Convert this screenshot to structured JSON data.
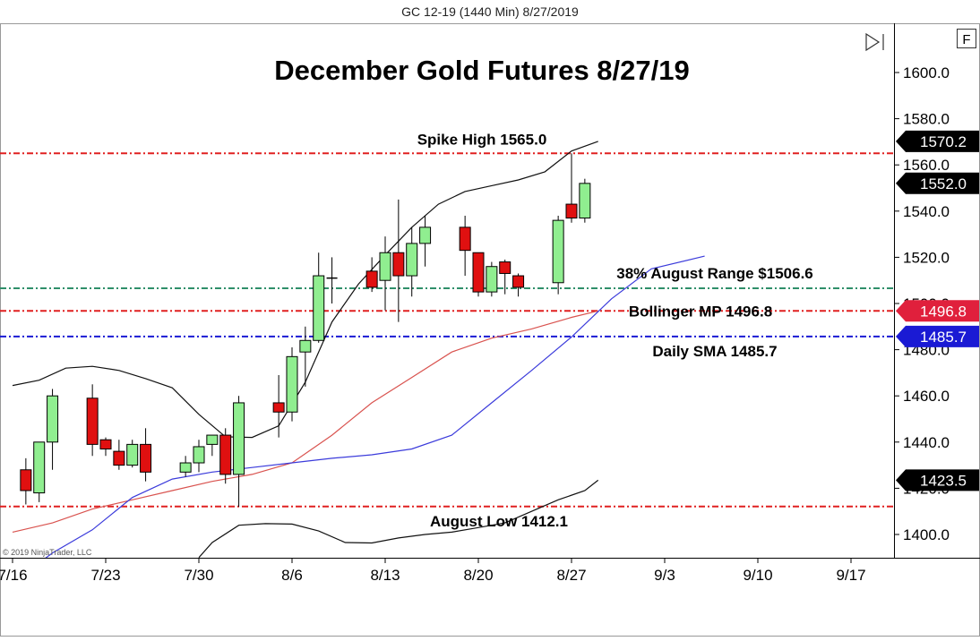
{
  "header": {
    "caption": "GC 12-19 (1440 Min)  8/27/2019"
  },
  "chart_data": {
    "type": "candlestick",
    "title": "December Gold Futures 8/27/19",
    "copyright": "© 2019 NinjaTrader, LLC",
    "panel_button": "F",
    "ylim": [
      1390,
      1620
    ],
    "y_ticks": [
      {
        "value": 1400,
        "label": "1400.0"
      },
      {
        "value": 1420,
        "label": "1420.0"
      },
      {
        "value": 1440,
        "label": "1440.0"
      },
      {
        "value": 1460,
        "label": "1460.0"
      },
      {
        "value": 1480,
        "label": "1480.0"
      },
      {
        "value": 1500,
        "label": "1500.0"
      },
      {
        "value": 1520,
        "label": "1520.0"
      },
      {
        "value": 1540,
        "label": "1540.0"
      },
      {
        "value": 1560,
        "label": "1560.0"
      },
      {
        "value": 1580,
        "label": "1580.0"
      },
      {
        "value": 1600,
        "label": "1600.0"
      }
    ],
    "x_ticks": [
      {
        "date": "2019-07-16",
        "label": "7/16"
      },
      {
        "date": "2019-07-23",
        "label": "7/23"
      },
      {
        "date": "2019-07-30",
        "label": "7/30"
      },
      {
        "date": "2019-08-06",
        "label": "8/6"
      },
      {
        "date": "2019-08-13",
        "label": "8/13"
      },
      {
        "date": "2019-08-20",
        "label": "8/20"
      },
      {
        "date": "2019-08-27",
        "label": "8/27"
      },
      {
        "date": "2019-09-03",
        "label": "9/3"
      },
      {
        "date": "2019-09-10",
        "label": "9/10"
      },
      {
        "date": "2019-09-17",
        "label": "9/17"
      }
    ],
    "candles": [
      {
        "date": "2019-07-17",
        "open": 1428.0,
        "high": 1433.0,
        "low": 1413.0,
        "close": 1419.0
      },
      {
        "date": "2019-07-18",
        "open": 1418.0,
        "high": 1440.0,
        "low": 1414.0,
        "close": 1440.0
      },
      {
        "date": "2019-07-19",
        "open": 1440.0,
        "high": 1463.0,
        "low": 1428.0,
        "close": 1460.0
      },
      {
        "date": "2019-07-22",
        "open": 1459.0,
        "high": 1465.0,
        "low": 1434.0,
        "close": 1439.0
      },
      {
        "date": "2019-07-23",
        "open": 1441.0,
        "high": 1442.0,
        "low": 1434.0,
        "close": 1437.0
      },
      {
        "date": "2019-07-24",
        "open": 1436.0,
        "high": 1441.0,
        "low": 1428.0,
        "close": 1430.0
      },
      {
        "date": "2019-07-25",
        "open": 1430.0,
        "high": 1441.0,
        "low": 1429.0,
        "close": 1439.0
      },
      {
        "date": "2019-07-26",
        "open": 1439.0,
        "high": 1446.0,
        "low": 1423.0,
        "close": 1427.0
      },
      {
        "date": "2019-07-29",
        "open": 1427.0,
        "high": 1434.0,
        "low": 1425.0,
        "close": 1431.0
      },
      {
        "date": "2019-07-30",
        "open": 1431.0,
        "high": 1441.0,
        "low": 1427.0,
        "close": 1438.0
      },
      {
        "date": "2019-07-31",
        "open": 1439.0,
        "high": 1443.0,
        "low": 1434.0,
        "close": 1443.0
      },
      {
        "date": "2019-08-01",
        "open": 1443.0,
        "high": 1446.0,
        "low": 1422.0,
        "close": 1426.0
      },
      {
        "date": "2019-08-02",
        "open": 1426.0,
        "high": 1460.0,
        "low": 1412.0,
        "close": 1457.0
      },
      {
        "date": "2019-08-05",
        "open": 1457.0,
        "high": 1469.0,
        "low": 1442.0,
        "close": 1453.0
      },
      {
        "date": "2019-08-06",
        "open": 1453.0,
        "high": 1481.0,
        "low": 1449.0,
        "close": 1477.0
      },
      {
        "date": "2019-08-07",
        "open": 1479.0,
        "high": 1490.0,
        "low": 1464.0,
        "close": 1484.0
      },
      {
        "date": "2019-08-08",
        "open": 1484.0,
        "high": 1522.0,
        "low": 1483.0,
        "close": 1512.0
      },
      {
        "date": "2019-08-09",
        "open": 1511.0,
        "high": 1520.0,
        "low": 1500.0,
        "close": 1511.0
      },
      {
        "date": "2019-08-12",
        "open": 1514.0,
        "high": 1520.0,
        "low": 1505.0,
        "close": 1507.0
      },
      {
        "date": "2019-08-13",
        "open": 1510.0,
        "high": 1529.0,
        "low": 1497.0,
        "close": 1522.0
      },
      {
        "date": "2019-08-14",
        "open": 1522.0,
        "high": 1545.0,
        "low": 1492.0,
        "close": 1512.0
      },
      {
        "date": "2019-08-15",
        "open": 1512.0,
        "high": 1533.0,
        "low": 1503.0,
        "close": 1526.0
      },
      {
        "date": "2019-08-16",
        "open": 1526.0,
        "high": 1538.0,
        "low": 1516.0,
        "close": 1533.0
      },
      {
        "date": "2019-08-19",
        "open": 1533.0,
        "high": 1538.0,
        "low": 1512.0,
        "close": 1523.0
      },
      {
        "date": "2019-08-20",
        "open": 1522.0,
        "high": 1522.0,
        "low": 1503.0,
        "close": 1505.0
      },
      {
        "date": "2019-08-21",
        "open": 1505.0,
        "high": 1518.0,
        "low": 1503.0,
        "close": 1516.0
      },
      {
        "date": "2019-08-22",
        "open": 1518.0,
        "high": 1519.0,
        "low": 1504.0,
        "close": 1513.0
      },
      {
        "date": "2019-08-23",
        "open": 1512.0,
        "high": 1513.0,
        "low": 1503.0,
        "close": 1507.0
      },
      {
        "date": "2019-08-26",
        "open": 1509.0,
        "high": 1538.0,
        "low": 1504.0,
        "close": 1536.0
      },
      {
        "date": "2019-08-27",
        "open": 1543.0,
        "high": 1565.0,
        "low": 1535.0,
        "close": 1537.0
      },
      {
        "date": "2019-08-28",
        "open": 1537.0,
        "high": 1554.0,
        "low": 1535.0,
        "close": 1552.0
      }
    ],
    "series": [
      {
        "kind": "bollinger-upper",
        "color": "#111111",
        "points": [
          [
            "2019-07-16",
            1464.5
          ],
          [
            "2019-07-18",
            1466.8
          ],
          [
            "2019-07-20",
            1472
          ],
          [
            "2019-07-22",
            1472.8
          ],
          [
            "2019-07-24",
            1471
          ],
          [
            "2019-07-26",
            1467.5
          ],
          [
            "2019-07-28",
            1463.5
          ],
          [
            "2019-07-30",
            1452
          ],
          [
            "2019-08-01",
            1442.3
          ],
          [
            "2019-08-03",
            1442
          ],
          [
            "2019-08-05",
            1447
          ],
          [
            "2019-08-07",
            1466
          ],
          [
            "2019-08-09",
            1492
          ],
          [
            "2019-08-11",
            1508.5
          ],
          [
            "2019-08-13",
            1521
          ],
          [
            "2019-08-15",
            1533
          ],
          [
            "2019-08-17",
            1543
          ],
          [
            "2019-08-19",
            1548.5
          ],
          [
            "2019-08-21",
            1551
          ],
          [
            "2019-08-23",
            1553.5
          ],
          [
            "2019-08-25",
            1557
          ],
          [
            "2019-08-27",
            1566
          ],
          [
            "2019-08-29",
            1570.2
          ]
        ]
      },
      {
        "kind": "bollinger-lower",
        "color": "#111111",
        "points": [
          [
            "2019-07-30",
            1390
          ],
          [
            "2019-07-31",
            1396.5
          ],
          [
            "2019-08-02",
            1404
          ],
          [
            "2019-08-04",
            1404.7
          ],
          [
            "2019-08-06",
            1404.5
          ],
          [
            "2019-08-08",
            1401.5
          ],
          [
            "2019-08-10",
            1396.5
          ],
          [
            "2019-08-12",
            1396.3
          ],
          [
            "2019-08-14",
            1398.5
          ],
          [
            "2019-08-16",
            1400
          ],
          [
            "2019-08-18",
            1401
          ],
          [
            "2019-08-20",
            1403
          ],
          [
            "2019-08-22",
            1405
          ],
          [
            "2019-08-24",
            1410
          ],
          [
            "2019-08-26",
            1415
          ],
          [
            "2019-08-28",
            1419
          ],
          [
            "2019-08-29",
            1423.5
          ]
        ]
      },
      {
        "kind": "bollinger-mid",
        "color": "#d9534f",
        "points": [
          [
            "2019-07-16",
            1401
          ],
          [
            "2019-07-19",
            1405
          ],
          [
            "2019-07-22",
            1411
          ],
          [
            "2019-07-25",
            1415
          ],
          [
            "2019-07-28",
            1419
          ],
          [
            "2019-07-31",
            1423
          ],
          [
            "2019-08-03",
            1426
          ],
          [
            "2019-08-06",
            1431
          ],
          [
            "2019-08-09",
            1443
          ],
          [
            "2019-08-12",
            1457
          ],
          [
            "2019-08-15",
            1468
          ],
          [
            "2019-08-18",
            1479
          ],
          [
            "2019-08-21",
            1485
          ],
          [
            "2019-08-24",
            1489
          ],
          [
            "2019-08-27",
            1494
          ],
          [
            "2019-08-29",
            1496.8
          ]
        ]
      },
      {
        "kind": "sma",
        "color": "#3b3bdb",
        "points": [
          [
            "2019-07-16",
            1379
          ],
          [
            "2019-07-19",
            1392
          ],
          [
            "2019-07-22",
            1402
          ],
          [
            "2019-07-25",
            1416
          ],
          [
            "2019-07-28",
            1424
          ],
          [
            "2019-07-31",
            1427
          ],
          [
            "2019-08-03",
            1429
          ],
          [
            "2019-08-06",
            1431
          ],
          [
            "2019-08-09",
            1433
          ],
          [
            "2019-08-12",
            1434.5
          ],
          [
            "2019-08-15",
            1437
          ],
          [
            "2019-08-18",
            1443
          ],
          [
            "2019-08-21",
            1457
          ],
          [
            "2019-08-24",
            1471
          ],
          [
            "2019-08-27",
            1485.5
          ],
          [
            "2019-08-30",
            1502
          ],
          [
            "2019-09-02",
            1515
          ],
          [
            "2019-09-06",
            1520.5
          ]
        ]
      }
    ],
    "horizontal_lines": [
      {
        "value": 1565.0,
        "color": "#e02020",
        "label": "Spike High 1565.0",
        "label_pos": "above"
      },
      {
        "value": 1506.6,
        "color": "#2f8f6a",
        "label": "38% August Range $1506.6",
        "label_pos": "above"
      },
      {
        "value": 1496.8,
        "color": "#e02020",
        "label": "Bollinger MP 1496.8",
        "label_pos": "on"
      },
      {
        "value": 1485.7,
        "color": "#1a1ad4",
        "label": "Daily SMA 1485.7",
        "label_pos": "below"
      },
      {
        "value": 1412.1,
        "color": "#e02020",
        "label": "August Low 1412.1",
        "label_pos": "below"
      }
    ],
    "price_markers": [
      {
        "value": 1570.2,
        "label": "1570.2",
        "color": "#000000"
      },
      {
        "value": 1552.0,
        "label": "1552.0",
        "color": "#000000"
      },
      {
        "value": 1496.8,
        "label": "1496.8",
        "color": "#e0203c"
      },
      {
        "value": 1485.7,
        "label": "1485.7",
        "color": "#1a1ad4"
      },
      {
        "value": 1423.5,
        "label": "1423.5",
        "color": "#000000"
      }
    ],
    "colors": {
      "up": "#90ee90",
      "down": "#e01010",
      "candle_outline": "#000000"
    }
  }
}
